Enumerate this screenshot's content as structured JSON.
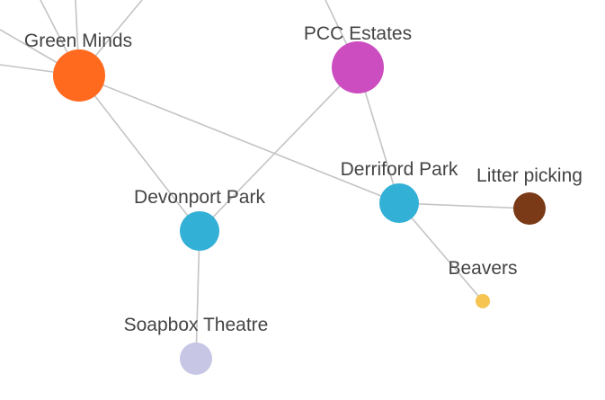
{
  "nodes": [
    {
      "id": "green_minds",
      "label": "Green Minds",
      "color": "#ff6a1f",
      "size": "large"
    },
    {
      "id": "pcc_estates",
      "label": "PCC Estates",
      "color": "#cc4dbf",
      "size": "large"
    },
    {
      "id": "derriford_park",
      "label": "Derriford Park",
      "color": "#33b0d6",
      "size": "medium"
    },
    {
      "id": "devonport_park",
      "label": "Devonport Park",
      "color": "#33b0d6",
      "size": "medium"
    },
    {
      "id": "litter_picking",
      "label": "Litter picking",
      "color": "#7b3a17",
      "size": "small"
    },
    {
      "id": "beavers",
      "label": "Beavers",
      "color": "#f5c451",
      "size": "tiny"
    },
    {
      "id": "soapbox_theatre",
      "label": "Soapbox Theatre",
      "color": "#c7c6e5",
      "size": "small"
    }
  ],
  "edges": [
    {
      "from": "green_minds",
      "to": "devonport_park"
    },
    {
      "from": "green_minds",
      "to": "derriford_park"
    },
    {
      "from": "pcc_estates",
      "to": "devonport_park"
    },
    {
      "from": "pcc_estates",
      "to": "derriford_park"
    },
    {
      "from": "derriford_park",
      "to": "litter_picking"
    },
    {
      "from": "derriford_park",
      "to": "beavers"
    },
    {
      "from": "devonport_park",
      "to": "soapbox_theatre"
    }
  ]
}
